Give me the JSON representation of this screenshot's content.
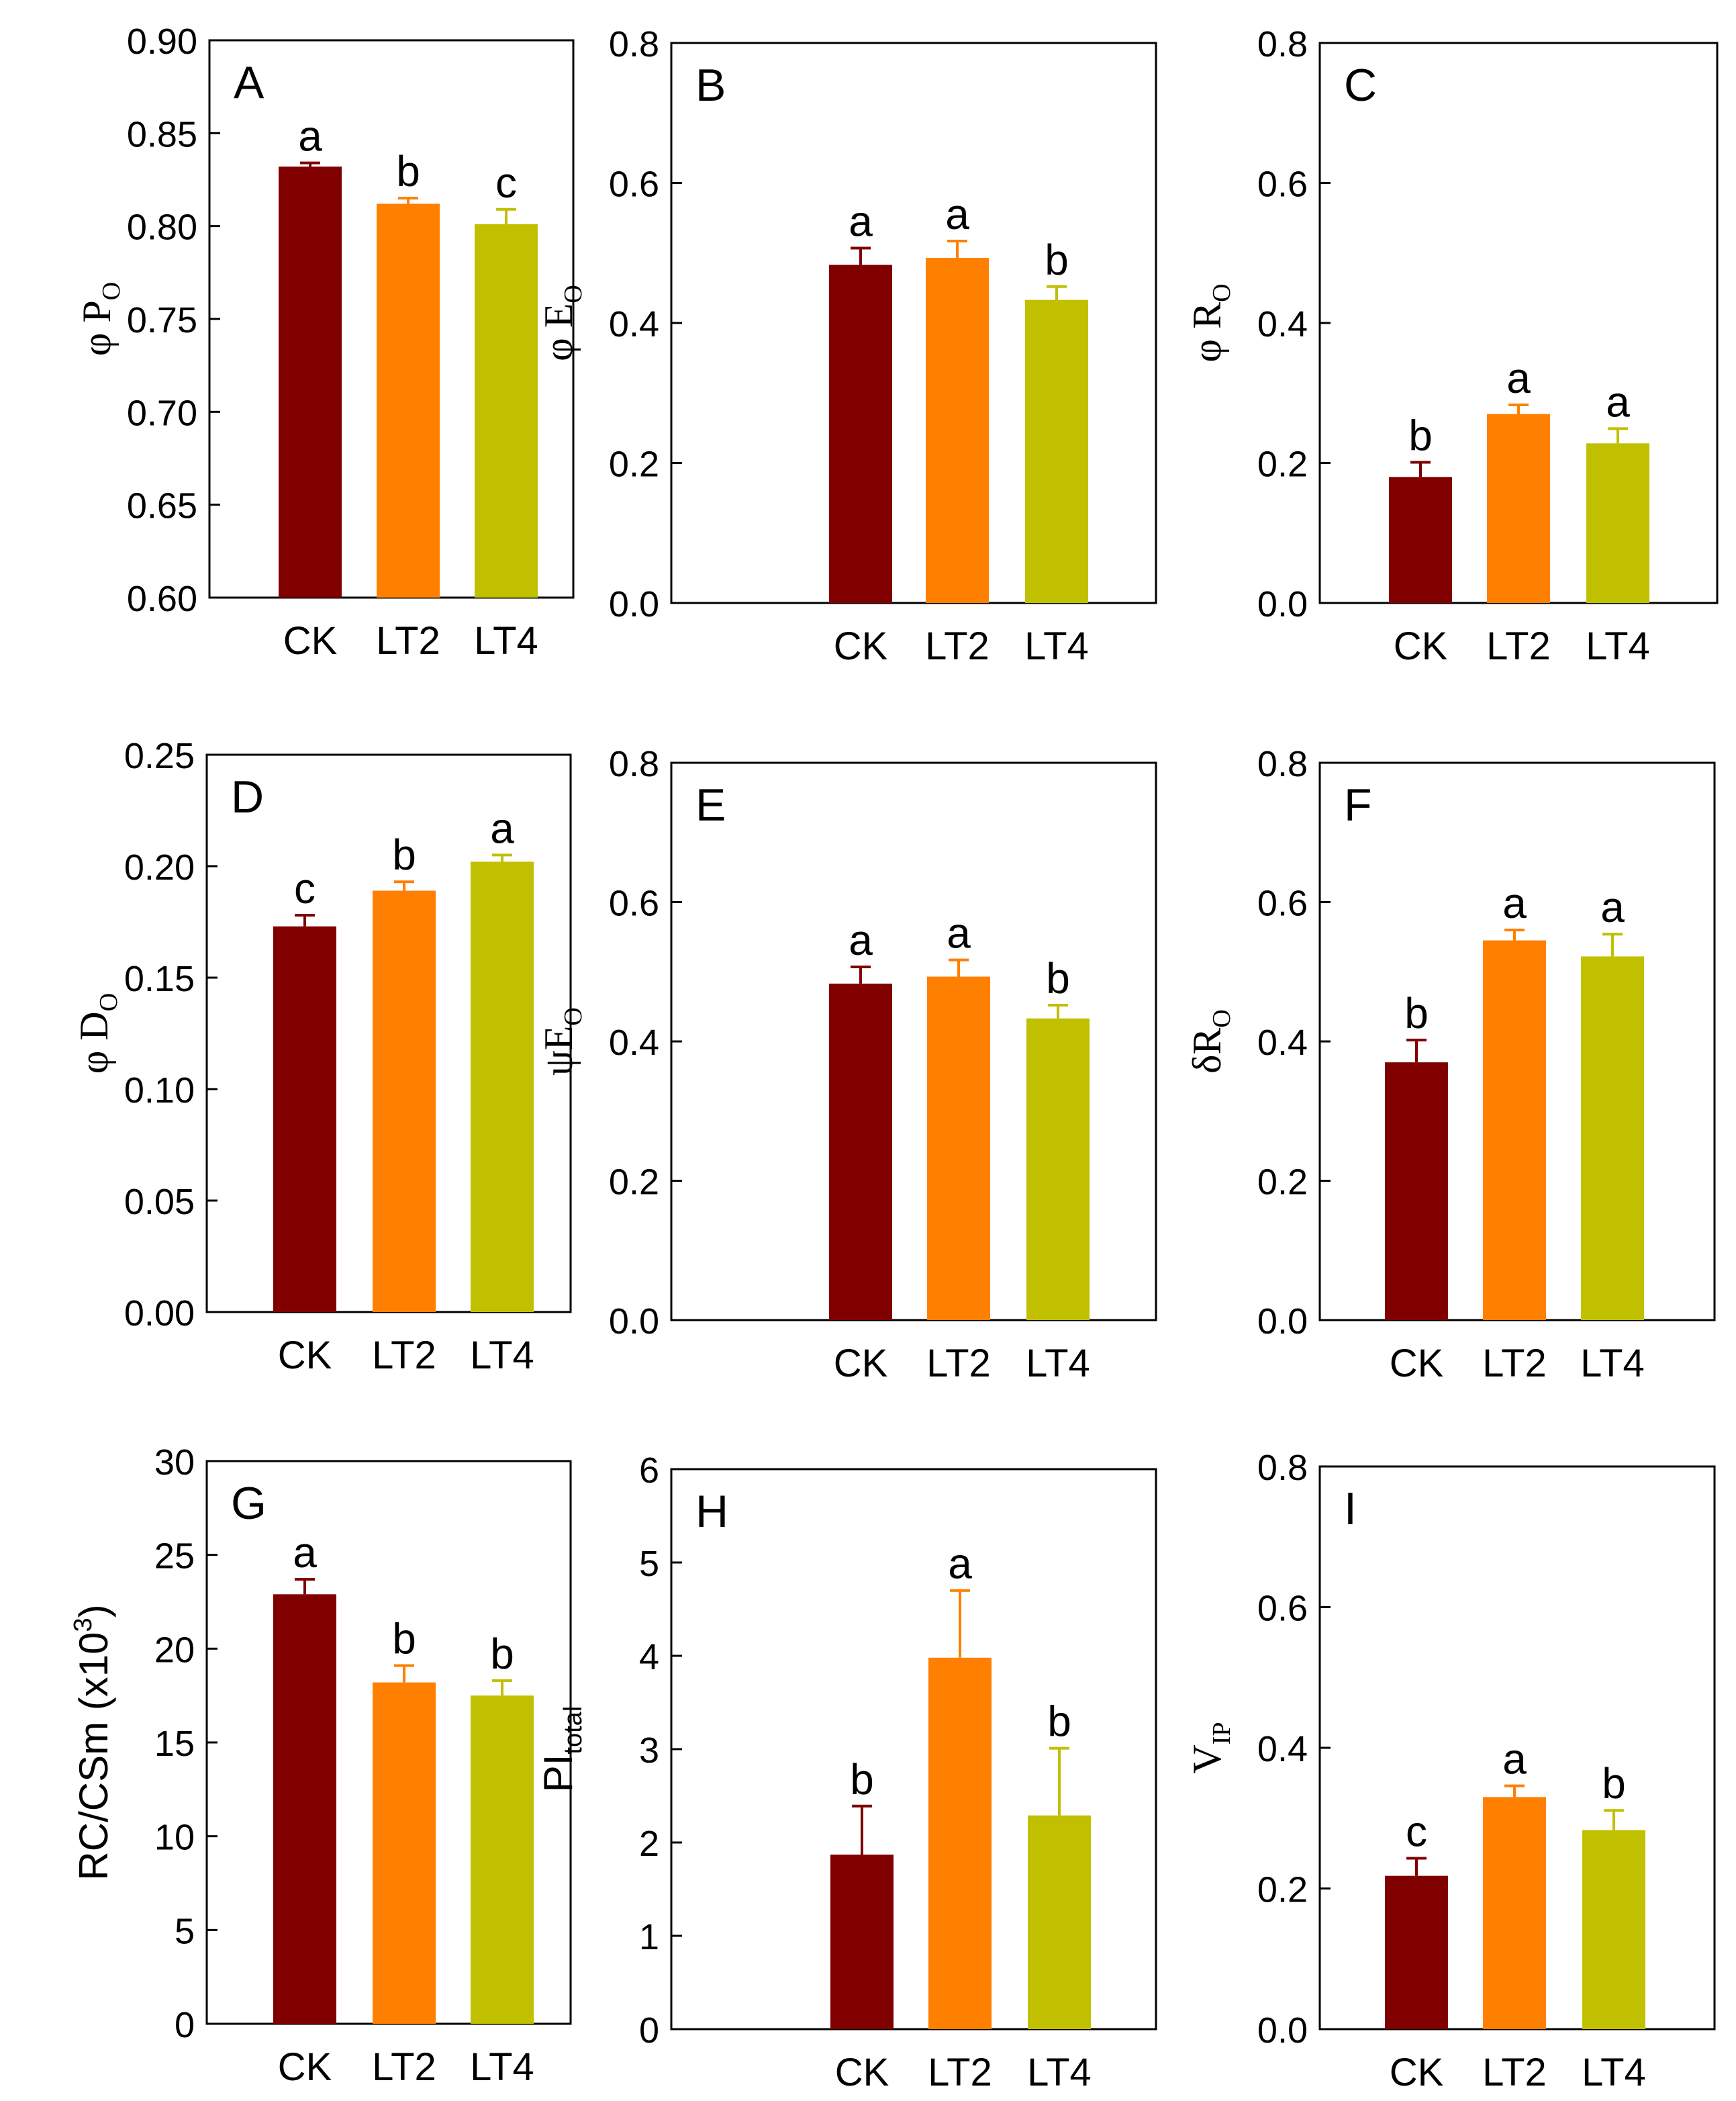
{
  "colors": {
    "CK": "#800000",
    "LT2": "#ff8000",
    "LT4": "#c0c000"
  },
  "chart_data": [
    {
      "type": "bar",
      "panel": "A",
      "ylabel_main": "φ P",
      "ylabel_sub": "O",
      "categories": [
        "CK",
        "LT2",
        "LT4"
      ],
      "values": [
        0.832,
        0.812,
        0.801
      ],
      "errors": [
        0.002,
        0.003,
        0.008
      ],
      "letters": [
        "a",
        "b",
        "c"
      ],
      "ylim": [
        0.6,
        0.9
      ],
      "yticks": [
        0.6,
        0.65,
        0.7,
        0.75,
        0.8,
        0.85,
        0.9
      ],
      "decimals": 2
    },
    {
      "type": "bar",
      "panel": "B",
      "ylabel_main": "φ E",
      "ylabel_sub": "O",
      "categories": [
        "CK",
        "LT2",
        "LT4"
      ],
      "values": [
        0.483,
        0.493,
        0.433
      ],
      "errors": [
        0.024,
        0.024,
        0.019
      ],
      "letters": [
        "a",
        "a",
        "b"
      ],
      "ylim": [
        0.0,
        0.8
      ],
      "yticks": [
        0.0,
        0.2,
        0.4,
        0.6,
        0.8
      ],
      "decimals": 1
    },
    {
      "type": "bar",
      "panel": "C",
      "ylabel_main": "φ R",
      "ylabel_sub": "O",
      "categories": [
        "CK",
        "LT2",
        "LT4"
      ],
      "values": [
        0.18,
        0.27,
        0.228
      ],
      "errors": [
        0.021,
        0.013,
        0.021
      ],
      "letters": [
        "b",
        "a",
        "a"
      ],
      "ylim": [
        0.0,
        0.8
      ],
      "yticks": [
        0.0,
        0.2,
        0.4,
        0.6,
        0.8
      ],
      "decimals": 1
    },
    {
      "type": "bar",
      "panel": "D",
      "ylabel_main": "φ D",
      "ylabel_sub": "O",
      "categories": [
        "CK",
        "LT2",
        "LT4"
      ],
      "values": [
        0.173,
        0.189,
        0.202
      ],
      "errors": [
        0.005,
        0.004,
        0.003
      ],
      "letters": [
        "c",
        "b",
        "a"
      ],
      "ylim": [
        0.0,
        0.25
      ],
      "yticks": [
        0.0,
        0.05,
        0.1,
        0.15,
        0.2,
        0.25
      ],
      "decimals": 2
    },
    {
      "type": "bar",
      "panel": "E",
      "ylabel_main": "ψE",
      "ylabel_sub": "O",
      "categories": [
        "CK",
        "LT2",
        "LT4"
      ],
      "values": [
        0.483,
        0.493,
        0.433
      ],
      "errors": [
        0.024,
        0.024,
        0.019
      ],
      "letters": [
        "a",
        "a",
        "b"
      ],
      "ylim": [
        0.0,
        0.8
      ],
      "yticks": [
        0.0,
        0.2,
        0.4,
        0.6,
        0.8
      ],
      "decimals": 1
    },
    {
      "type": "bar",
      "panel": "F",
      "ylabel_main": "δR",
      "ylabel_sub": "O",
      "categories": [
        "CK",
        "LT2",
        "LT4"
      ],
      "values": [
        0.37,
        0.545,
        0.522
      ],
      "errors": [
        0.032,
        0.015,
        0.032
      ],
      "letters": [
        "b",
        "a",
        "a"
      ],
      "ylim": [
        0.0,
        0.8
      ],
      "yticks": [
        0.0,
        0.2,
        0.4,
        0.6,
        0.8
      ],
      "decimals": 1
    },
    {
      "type": "bar",
      "panel": "G",
      "ylabel_main": "RC/CSm (x10",
      "ylabel_sup": "3",
      "ylabel_tail": ")",
      "categories": [
        "CK",
        "LT2",
        "LT4"
      ],
      "values": [
        22.9,
        18.2,
        17.5
      ],
      "errors": [
        0.8,
        0.9,
        0.8
      ],
      "letters": [
        "a",
        "b",
        "b"
      ],
      "ylim": [
        0,
        30
      ],
      "yticks": [
        0,
        5,
        10,
        15,
        20,
        25,
        30
      ],
      "decimals": 0
    },
    {
      "type": "bar",
      "panel": "H",
      "ylabel_main": "PI",
      "ylabel_sub": "total",
      "categories": [
        "CK",
        "LT2",
        "LT4"
      ],
      "values": [
        1.87,
        3.98,
        2.29
      ],
      "errors": [
        0.52,
        0.72,
        0.72
      ],
      "letters": [
        "b",
        "a",
        "b"
      ],
      "ylim": [
        0,
        6
      ],
      "yticks": [
        0,
        1,
        2,
        3,
        4,
        5,
        6
      ],
      "decimals": 0
    },
    {
      "type": "bar",
      "panel": "I",
      "ylabel_main": "V",
      "ylabel_sub": "IP",
      "categories": [
        "CK",
        "LT2",
        "LT4"
      ],
      "values": [
        0.218,
        0.33,
        0.283
      ],
      "errors": [
        0.025,
        0.016,
        0.028
      ],
      "letters": [
        "c",
        "a",
        "b"
      ],
      "ylim": [
        0.0,
        0.8
      ],
      "yticks": [
        0.0,
        0.2,
        0.4,
        0.6,
        0.8
      ],
      "decimals": 1
    }
  ]
}
